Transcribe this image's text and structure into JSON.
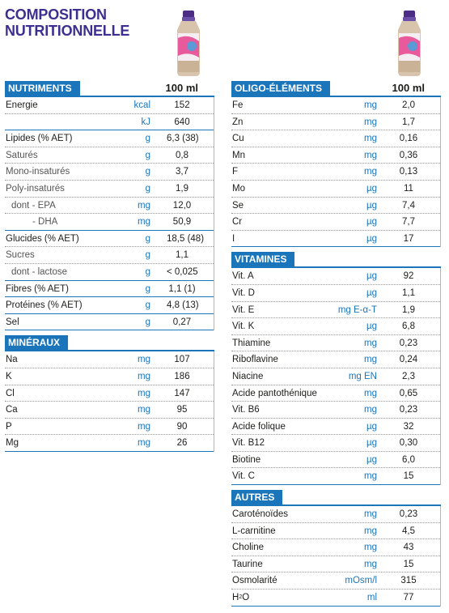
{
  "title": {
    "line1": "COMPOSITION",
    "line2": "NUTRITIONNELLE"
  },
  "per_label": "100 ml",
  "colors": {
    "accent": "#1a75bb",
    "title": "#3d2f8f"
  },
  "icons": [
    "product-bottle-icon"
  ],
  "sections": {
    "nutriments": {
      "label": "NUTRIMENTS",
      "rows": [
        {
          "name": "Energie",
          "unit": "kcal",
          "value": "152"
        },
        {
          "name": "",
          "unit": "kJ",
          "value": "640"
        },
        {
          "name": "Lipides (% AET)",
          "unit": "g",
          "value": "6,3 (38)"
        },
        {
          "name": "Saturés",
          "unit": "g",
          "value": "0,8"
        },
        {
          "name": "Mono-insaturés",
          "unit": "g",
          "value": "3,7"
        },
        {
          "name": "Poly-insaturés",
          "unit": "g",
          "value": "1,9"
        },
        {
          "name": "dont - EPA",
          "unit": "mg",
          "value": "12,0"
        },
        {
          "name": "- DHA",
          "unit": "mg",
          "value": "50,9"
        },
        {
          "name": "Glucides (% AET)",
          "unit": "g",
          "value": "18,5 (48)"
        },
        {
          "name": "Sucres",
          "unit": "g",
          "value": "1,1"
        },
        {
          "name": "dont - lactose",
          "unit": "g",
          "value": "< 0,025"
        },
        {
          "name": "Fibres (% AET)",
          "unit": "g",
          "value": "1,1 (1)"
        },
        {
          "name": "Protéines (% AET)",
          "unit": "g",
          "value": "4,8 (13)"
        },
        {
          "name": "Sel",
          "unit": "g",
          "value": "0,27"
        }
      ]
    },
    "mineraux": {
      "label": "MINÉRAUX",
      "rows": [
        {
          "name": "Na",
          "unit": "mg",
          "value": "107"
        },
        {
          "name": "K",
          "unit": "mg",
          "value": "186"
        },
        {
          "name": "Cl",
          "unit": "mg",
          "value": "147"
        },
        {
          "name": "Ca",
          "unit": "mg",
          "value": "95"
        },
        {
          "name": "P",
          "unit": "mg",
          "value": "90"
        },
        {
          "name": "Mg",
          "unit": "mg",
          "value": "26"
        }
      ]
    },
    "oligo": {
      "label": "OLIGO-ÉLÉMENTS",
      "rows": [
        {
          "name": "Fe",
          "unit": "mg",
          "value": "2,0"
        },
        {
          "name": "Zn",
          "unit": "mg",
          "value": "1,7"
        },
        {
          "name": "Cu",
          "unit": "mg",
          "value": "0,16"
        },
        {
          "name": "Mn",
          "unit": "mg",
          "value": "0,36"
        },
        {
          "name": "F",
          "unit": "mg",
          "value": "0,13"
        },
        {
          "name": "Mo",
          "unit": "µg",
          "value": "11"
        },
        {
          "name": "Se",
          "unit": "µg",
          "value": "7,4"
        },
        {
          "name": "Cr",
          "unit": "µg",
          "value": "7,7"
        },
        {
          "name": "I",
          "unit": "µg",
          "value": "17"
        }
      ]
    },
    "vitamines": {
      "label": "VITAMINES",
      "rows": [
        {
          "name": "Vit. A",
          "unit": "µg",
          "value": "92"
        },
        {
          "name": "Vit. D",
          "unit": "µg",
          "value": "1,1"
        },
        {
          "name": "Vit. E",
          "unit": "mg E-α-T",
          "value": "1,9"
        },
        {
          "name": "Vit. K",
          "unit": "µg",
          "value": "6,8"
        },
        {
          "name": "Thiamine",
          "unit": "mg",
          "value": "0,23"
        },
        {
          "name": "Riboflavine",
          "unit": "mg",
          "value": "0,24"
        },
        {
          "name": "Niacine",
          "unit": "mg EN",
          "value": "2,3"
        },
        {
          "name": "Acide pantothénique",
          "unit": "mg",
          "value": "0,65"
        },
        {
          "name": "Vit. B6",
          "unit": "mg",
          "value": "0,23"
        },
        {
          "name": "Acide folique",
          "unit": "µg",
          "value": "32"
        },
        {
          "name": "Vit. B12",
          "unit": "µg",
          "value": "0,30"
        },
        {
          "name": "Biotine",
          "unit": "µg",
          "value": "6,0"
        },
        {
          "name": "Vit. C",
          "unit": "mg",
          "value": "15"
        }
      ]
    },
    "autres": {
      "label": "AUTRES",
      "rows": [
        {
          "name": "Caroténoïdes",
          "unit": "mg",
          "value": "0,23"
        },
        {
          "name": "L-carnitine",
          "unit": "mg",
          "value": "4,5"
        },
        {
          "name": "Choline",
          "unit": "mg",
          "value": "43"
        },
        {
          "name": "Taurine",
          "unit": "mg",
          "value": "15"
        },
        {
          "name": "Osmolarité",
          "unit": "mOsm/l",
          "value": "315"
        },
        {
          "name": "H",
          "name_sup": "2",
          "name_tail": "O",
          "unit": "ml",
          "value": "77"
        }
      ]
    }
  }
}
